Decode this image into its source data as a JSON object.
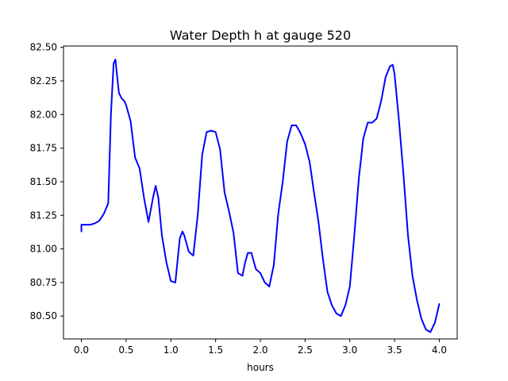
{
  "chart_data": {
    "type": "line",
    "title": "Water Depth h at gauge 520",
    "xlabel": "hours",
    "ylabel": "",
    "xlim": [
      -0.2,
      4.2
    ],
    "ylim": [
      80.33,
      82.51
    ],
    "xticks": [
      0.0,
      0.5,
      1.0,
      1.5,
      2.0,
      2.5,
      3.0,
      3.5,
      4.0
    ],
    "xtick_labels": [
      "0.0",
      "0.5",
      "1.0",
      "1.5",
      "2.0",
      "2.5",
      "3.0",
      "3.5",
      "4.0"
    ],
    "yticks": [
      80.5,
      80.75,
      81.0,
      81.25,
      81.5,
      81.75,
      82.0,
      82.25,
      82.5
    ],
    "ytick_labels": [
      "80.50",
      "80.75",
      "81.00",
      "81.25",
      "81.50",
      "81.75",
      "82.00",
      "82.25",
      "82.50"
    ],
    "grid": false,
    "series": [
      {
        "color": "#0000ff",
        "x": [
          0.0,
          0.0,
          0.05,
          0.1,
          0.15,
          0.2,
          0.25,
          0.3,
          0.33,
          0.36,
          0.38,
          0.4,
          0.42,
          0.45,
          0.48,
          0.5,
          0.55,
          0.6,
          0.65,
          0.7,
          0.75,
          0.8,
          0.83,
          0.86,
          0.9,
          0.95,
          1.0,
          1.05,
          1.1,
          1.13,
          1.15,
          1.2,
          1.25,
          1.3,
          1.35,
          1.4,
          1.45,
          1.5,
          1.55,
          1.6,
          1.65,
          1.7,
          1.75,
          1.8,
          1.83,
          1.86,
          1.9,
          1.95,
          2.0,
          2.05,
          2.1,
          2.15,
          2.2,
          2.25,
          2.3,
          2.35,
          2.4,
          2.45,
          2.5,
          2.55,
          2.6,
          2.65,
          2.7,
          2.75,
          2.8,
          2.85,
          2.9,
          2.95,
          3.0,
          3.05,
          3.1,
          3.15,
          3.2,
          3.25,
          3.3,
          3.35,
          3.4,
          3.45,
          3.48,
          3.5,
          3.55,
          3.6,
          3.65,
          3.7,
          3.75,
          3.8,
          3.85,
          3.9,
          3.95,
          4.0
        ],
        "y": [
          81.13,
          81.18,
          81.18,
          81.18,
          81.19,
          81.21,
          81.26,
          81.34,
          82.0,
          82.38,
          82.41,
          82.28,
          82.16,
          82.12,
          82.1,
          82.07,
          81.95,
          81.68,
          81.6,
          81.38,
          81.2,
          81.38,
          81.47,
          81.38,
          81.1,
          80.9,
          80.76,
          80.75,
          81.08,
          81.13,
          81.1,
          80.98,
          80.95,
          81.25,
          81.7,
          81.87,
          81.88,
          81.87,
          81.74,
          81.42,
          81.28,
          81.12,
          80.82,
          80.8,
          80.9,
          80.97,
          80.97,
          80.85,
          80.82,
          80.75,
          80.72,
          80.88,
          81.26,
          81.5,
          81.8,
          81.92,
          81.92,
          81.86,
          81.78,
          81.65,
          81.42,
          81.2,
          80.92,
          80.68,
          80.58,
          80.52,
          80.5,
          80.58,
          80.72,
          81.1,
          81.52,
          81.82,
          81.94,
          81.94,
          81.97,
          82.1,
          82.28,
          82.36,
          82.37,
          82.3,
          81.95,
          81.55,
          81.1,
          80.8,
          80.62,
          80.48,
          80.4,
          80.38,
          80.45,
          80.59
        ]
      }
    ]
  }
}
